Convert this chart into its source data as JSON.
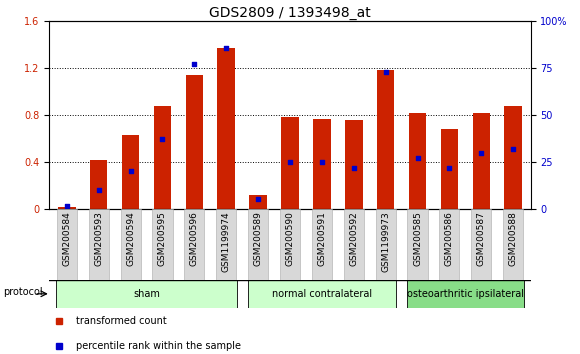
{
  "title": "GDS2809 / 1393498_at",
  "samples": [
    "GSM200584",
    "GSM200593",
    "GSM200594",
    "GSM200595",
    "GSM200596",
    "GSM1199974",
    "GSM200589",
    "GSM200590",
    "GSM200591",
    "GSM200592",
    "GSM1199973",
    "GSM200585",
    "GSM200586",
    "GSM200587",
    "GSM200588"
  ],
  "red_values": [
    0.02,
    0.42,
    0.63,
    0.88,
    1.14,
    1.37,
    0.12,
    0.78,
    0.77,
    0.76,
    1.18,
    0.82,
    0.68,
    0.82,
    0.88
  ],
  "blue_values": [
    1.5,
    10.0,
    20.0,
    37.0,
    77.0,
    86.0,
    5.0,
    25.0,
    25.0,
    22.0,
    73.0,
    27.0,
    22.0,
    30.0,
    32.0
  ],
  "group_defs": [
    {
      "start": 0,
      "end": 5,
      "label": "sham",
      "color": "#ccffcc"
    },
    {
      "start": 6,
      "end": 10,
      "label": "normal contralateral",
      "color": "#ccffcc"
    },
    {
      "start": 11,
      "end": 14,
      "label": "osteoarthritic ipsilateral",
      "color": "#88dd88"
    }
  ],
  "bar_color": "#cc2200",
  "dot_color": "#0000cc",
  "left_ylim": [
    0,
    1.6
  ],
  "right_ylim": [
    0,
    100
  ],
  "left_yticks": [
    0,
    0.4,
    0.8,
    1.2,
    1.6
  ],
  "right_yticks": [
    0,
    25,
    50,
    75,
    100
  ],
  "left_yticklabels": [
    "0",
    "0.4",
    "0.8",
    "1.2",
    "1.6"
  ],
  "right_yticklabels": [
    "0",
    "25",
    "50",
    "75",
    "100%"
  ],
  "legend_items": [
    {
      "label": "transformed count",
      "color": "#cc2200"
    },
    {
      "label": "percentile rank within the sample",
      "color": "#0000cc"
    }
  ],
  "bar_width": 0.55,
  "protocol_label": "protocol",
  "title_fontsize": 10,
  "tick_fontsize": 6.5,
  "label_fontsize": 7.5
}
